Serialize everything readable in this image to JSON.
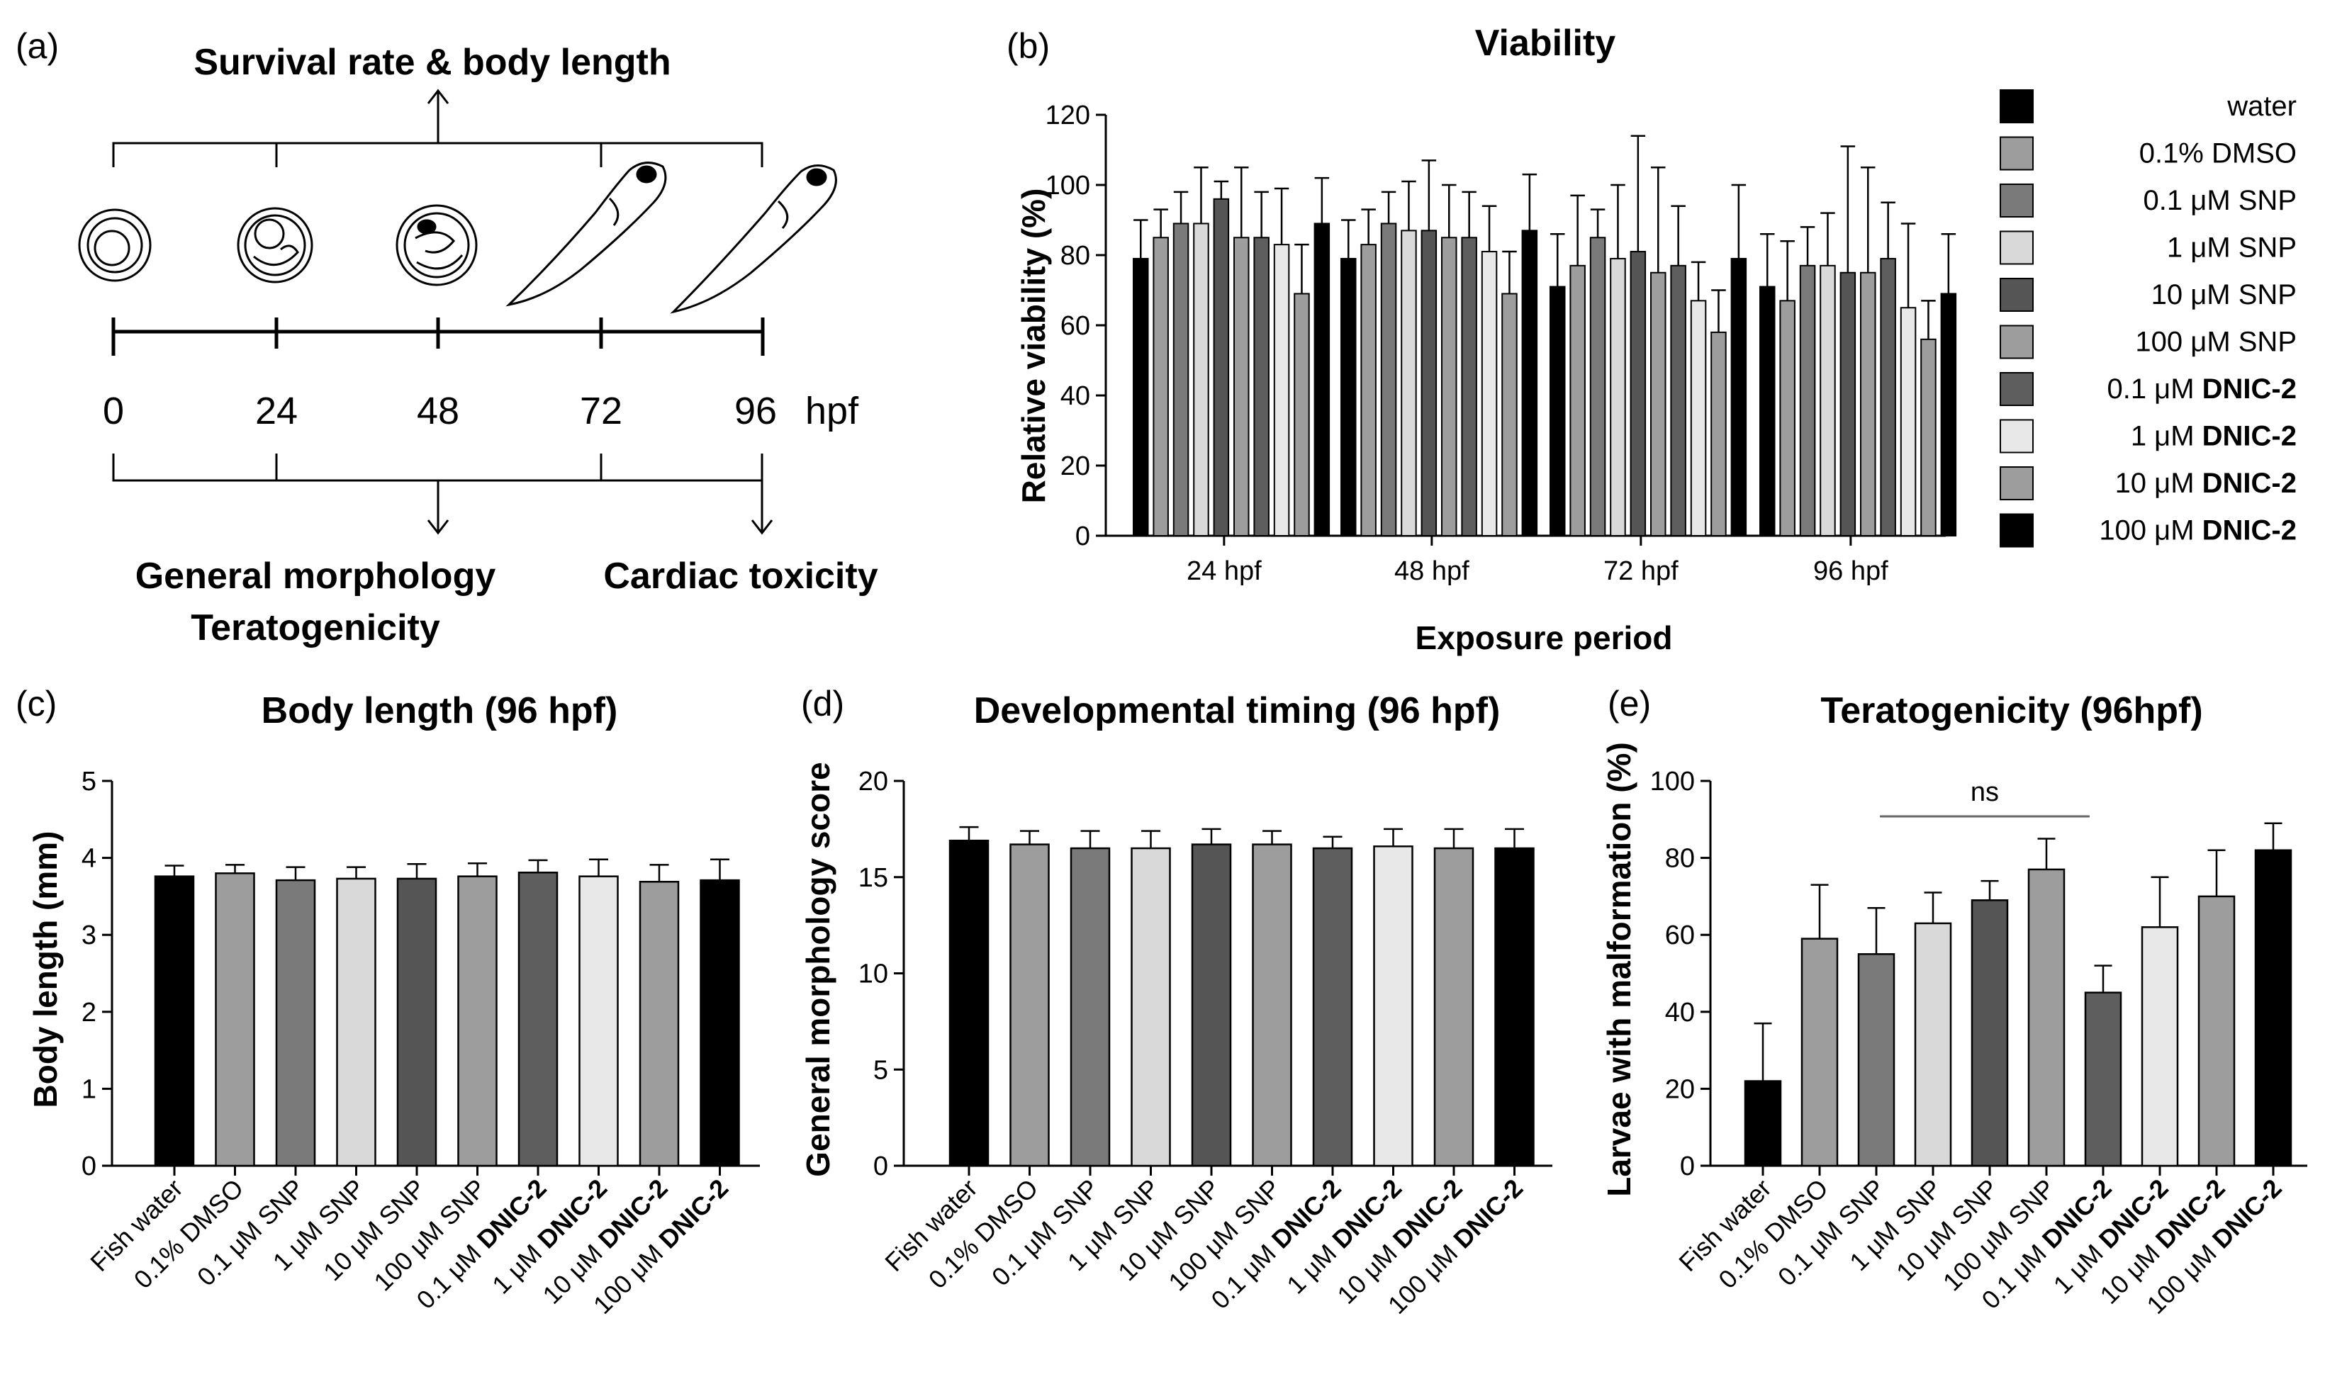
{
  "panel_a": {
    "label": "(a)",
    "top_caption": "Survival rate & body length",
    "timeline_ticks": [
      "0",
      "24",
      "48",
      "72",
      "96"
    ],
    "unit": "hpf",
    "bottom_left_caption_1": "General morphology",
    "bottom_left_caption_2": "Teratogenicity",
    "bottom_right_caption": "Cardiac toxicity"
  },
  "legend": {
    "entries": [
      {
        "pre": "water",
        "bold": "",
        "color": "#000000"
      },
      {
        "pre": "0.1% DMSO",
        "bold": "",
        "color": "#9d9d9d"
      },
      {
        "pre": "0.1 μM SNP",
        "bold": "",
        "color": "#7a7a7a"
      },
      {
        "pre": "1 μM SNP",
        "bold": "",
        "color": "#d9d9d9"
      },
      {
        "pre": "10 μM SNP",
        "bold": "",
        "color": "#555555"
      },
      {
        "pre": "100 μM SNP",
        "bold": "",
        "color": "#9d9d9d"
      },
      {
        "pre": "0.1 μM ",
        "bold": "DNIC-2",
        "color": "#5e5e5e"
      },
      {
        "pre": "1 μM ",
        "bold": "DNIC-2",
        "color": "#e8e8e8"
      },
      {
        "pre": "10 μM ",
        "bold": "DNIC-2",
        "color": "#9d9d9d"
      },
      {
        "pre": "100 μM ",
        "bold": "DNIC-2",
        "color": "#000000"
      }
    ]
  },
  "bar_categories": [
    {
      "pre": "Fish water",
      "bold": ""
    },
    {
      "pre": "0.1% DMSO",
      "bold": ""
    },
    {
      "pre": "0.1 μM SNP",
      "bold": ""
    },
    {
      "pre": "1 μM SNP",
      "bold": ""
    },
    {
      "pre": "10 μM SNP",
      "bold": ""
    },
    {
      "pre": "100 μM SNP",
      "bold": ""
    },
    {
      "pre": "0.1 μM ",
      "bold": "DNIC-2"
    },
    {
      "pre": "1 μM ",
      "bold": "DNIC-2"
    },
    {
      "pre": "10 μM ",
      "bold": "DNIC-2"
    },
    {
      "pre": "100 μM ",
      "bold": "DNIC-2"
    }
  ],
  "chart_data": [
    {
      "panel": "(b)",
      "type": "bar",
      "title": "Viability",
      "xlabel": "Exposure period",
      "ylabel": "Relative viability (%)",
      "ylim": [
        0,
        120
      ],
      "yticks": [
        0,
        20,
        40,
        60,
        80,
        100,
        120
      ],
      "categories": [
        "24 hpf",
        "48 hpf",
        "72 hpf",
        "96 hpf"
      ],
      "series": [
        {
          "name": "water",
          "values": [
            79,
            79,
            71,
            71
          ],
          "errors": [
            11,
            11,
            15,
            15
          ]
        },
        {
          "name": "0.1% DMSO",
          "values": [
            85,
            83,
            77,
            67
          ],
          "errors": [
            8,
            10,
            20,
            17
          ]
        },
        {
          "name": "0.1 μM SNP",
          "values": [
            89,
            89,
            85,
            77
          ],
          "errors": [
            9,
            9,
            8,
            11
          ]
        },
        {
          "name": "1 μM SNP",
          "values": [
            89,
            87,
            79,
            77
          ],
          "errors": [
            16,
            14,
            21,
            15
          ]
        },
        {
          "name": "10 μM SNP",
          "values": [
            96,
            87,
            81,
            75
          ],
          "errors": [
            5,
            20,
            33,
            36
          ]
        },
        {
          "name": "100 μM SNP",
          "values": [
            85,
            85,
            75,
            75
          ],
          "errors": [
            20,
            15,
            30,
            30
          ]
        },
        {
          "name": "0.1 μM DNIC-2",
          "values": [
            85,
            85,
            77,
            79
          ],
          "errors": [
            13,
            13,
            17,
            16
          ]
        },
        {
          "name": "1 μM DNIC-2",
          "values": [
            83,
            81,
            67,
            65
          ],
          "errors": [
            16,
            13,
            11,
            24
          ]
        },
        {
          "name": "10 μM DNIC-2",
          "values": [
            69,
            69,
            58,
            56
          ],
          "errors": [
            14,
            12,
            12,
            11
          ]
        },
        {
          "name": "100 μM DNIC-2",
          "values": [
            89,
            87,
            79,
            69
          ],
          "errors": [
            13,
            16,
            21,
            17
          ]
        }
      ]
    },
    {
      "panel": "(c)",
      "type": "bar",
      "title": "Body length (96 hpf)",
      "ylabel": "Body length (mm)",
      "ylim": [
        0,
        5
      ],
      "yticks": [
        0,
        1,
        2,
        3,
        4,
        5
      ],
      "categories": [
        "Fish water",
        "0.1% DMSO",
        "0.1 μM SNP",
        "1 μM SNP",
        "10 μM SNP",
        "100 μM SNP",
        "0.1 μM DNIC-2",
        "1 μM DNIC-2",
        "10 μM DNIC-2",
        "100 μM DNIC-2"
      ],
      "values": [
        3.76,
        3.8,
        3.71,
        3.73,
        3.73,
        3.76,
        3.81,
        3.76,
        3.69,
        3.71
      ],
      "errors": [
        0.14,
        0.11,
        0.17,
        0.15,
        0.19,
        0.17,
        0.16,
        0.22,
        0.22,
        0.27
      ]
    },
    {
      "panel": "(d)",
      "type": "bar",
      "title": "Developmental timing (96 hpf)",
      "ylabel": "General morphology score",
      "ylim": [
        0,
        20
      ],
      "yticks": [
        0,
        5,
        10,
        15,
        20
      ],
      "categories": [
        "Fish water",
        "0.1% DMSO",
        "0.1 μM SNP",
        "1 μM SNP",
        "10 μM SNP",
        "100 μM SNP",
        "0.1 μM DNIC-2",
        "1 μM DNIC-2",
        "10 μM DNIC-2",
        "100 μM DNIC-2"
      ],
      "values": [
        16.9,
        16.7,
        16.5,
        16.5,
        16.7,
        16.7,
        16.5,
        16.6,
        16.5,
        16.5
      ],
      "errors": [
        0.7,
        0.7,
        0.9,
        0.9,
        0.8,
        0.7,
        0.6,
        0.9,
        1.0,
        1.0
      ]
    },
    {
      "panel": "(e)",
      "type": "bar",
      "title": "Teratogenicity (96hpf)",
      "ylabel": "Larvae with malformation (%)",
      "ylim": [
        0,
        100
      ],
      "yticks": [
        0,
        20,
        40,
        60,
        80,
        100
      ],
      "annotation": "ns",
      "categories": [
        "Fish water",
        "0.1% DMSO",
        "0.1 μM SNP",
        "1 μM SNP",
        "10 μM SNP",
        "100 μM SNP",
        "0.1 μM DNIC-2",
        "1 μM DNIC-2",
        "10 μM DNIC-2",
        "100 μM DNIC-2"
      ],
      "values": [
        22,
        59,
        55,
        63,
        69,
        77,
        45,
        62,
        70,
        82
      ],
      "errors": [
        15,
        14,
        12,
        8,
        5,
        8,
        7,
        13,
        12,
        7
      ]
    }
  ]
}
